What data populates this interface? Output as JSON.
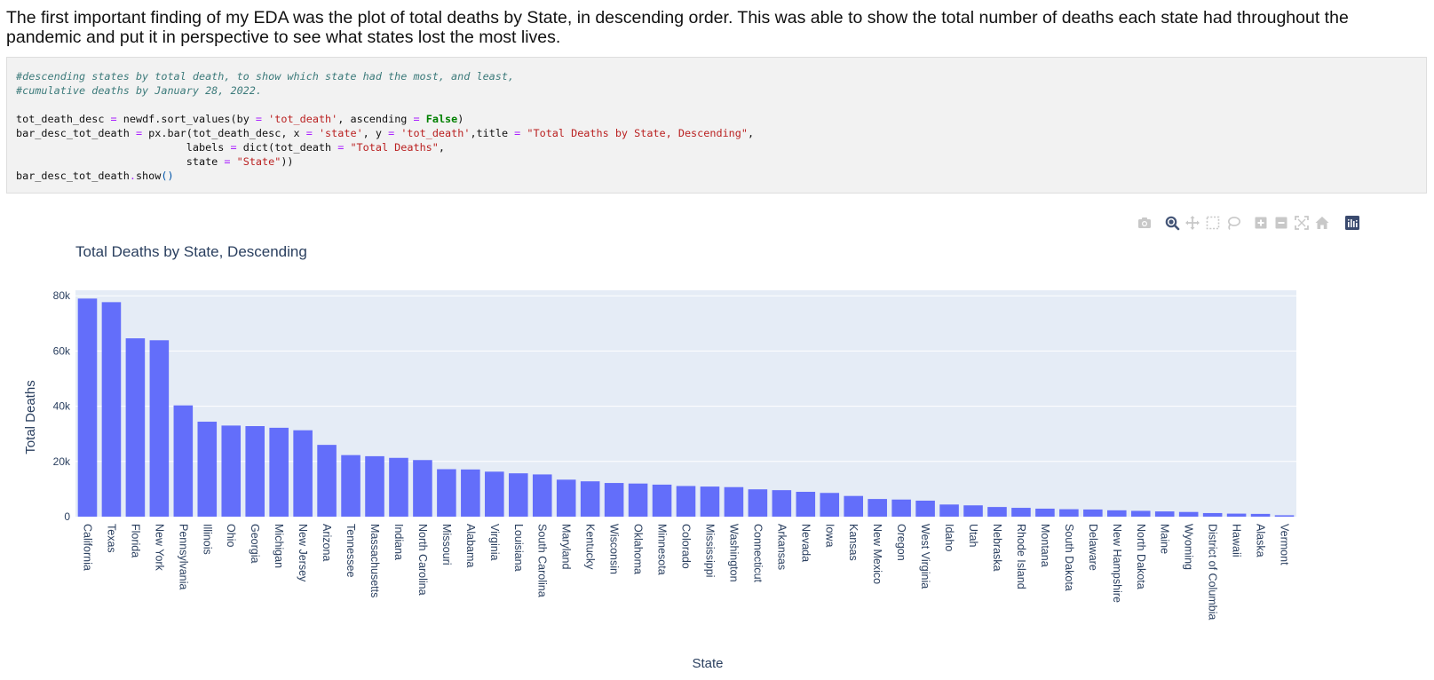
{
  "notebook": {
    "intro_text": "The first important finding of my EDA was the plot of total deaths by State, in descending order. This was able to show the total number of deaths each state had throughout the pandemic and put it in perspective to see what states lost the most lives."
  },
  "code_cell": {
    "lines": [
      "#descending states by total death, to show which state had the most, and least,",
      "#cumulative deaths by January 28, 2022.",
      "",
      "tot_death_desc = newdf.sort_values(by = 'tot_death', ascending = False)",
      "bar_desc_tot_death = px.bar(tot_death_desc, x = 'state', y = 'tot_death',title = \"Total Deaths by State, Descending\",",
      "                           labels = dict(tot_death = \"Total Deaths\",",
      "                           state = \"State\"))",
      "bar_desc_tot_death.show()"
    ]
  },
  "modebar": {
    "icons": [
      "camera-icon",
      "zoom-icon",
      "pan-icon",
      "box-select-icon",
      "lasso-select-icon",
      "zoom-in-icon",
      "zoom-out-icon",
      "autoscale-icon",
      "reset-axes-icon",
      "plotly-logo-icon"
    ]
  },
  "colors": {
    "bar": "#636efa",
    "plot_bg": "#e5ecf6",
    "grid": "#ffffff",
    "axis_text": "#2a3f5f",
    "modebar_icon": "#c8c8c8",
    "modebar_active": "#445577",
    "plotly_logo_bg": "#3a4a6e"
  },
  "chart_data": {
    "type": "bar",
    "title": "Total Deaths by State, Descending",
    "xlabel": "State",
    "ylabel": "Total Deaths",
    "ylim": [
      0,
      80000
    ],
    "yticks": [
      0,
      20000,
      40000,
      60000,
      80000
    ],
    "ytick_labels": [
      "0",
      "20k",
      "40k",
      "60k",
      "80k"
    ],
    "grid": true,
    "categories": [
      "California",
      "Texas",
      "Florida",
      "New York",
      "Pennsylvania",
      "Illinois",
      "Ohio",
      "Georgia",
      "Michigan",
      "New Jersey",
      "Arizona",
      "Tennessee",
      "Massachusetts",
      "Indiana",
      "North Carolina",
      "Missouri",
      "Alabama",
      "Virginia",
      "Louisiana",
      "South Carolina",
      "Maryland",
      "Kentucky",
      "Wisconsin",
      "Oklahoma",
      "Minnesota",
      "Colorado",
      "Mississippi",
      "Washington",
      "Connecticut",
      "Arkansas",
      "Nevada",
      "Iowa",
      "Kansas",
      "New Mexico",
      "Oregon",
      "West Virginia",
      "Idaho",
      "Utah",
      "Nebraska",
      "Rhode Island",
      "Montana",
      "South Dakota",
      "Delaware",
      "New Hampshire",
      "North Dakota",
      "Maine",
      "Wyoming",
      "District of Columbia",
      "Hawaii",
      "Alaska",
      "Vermont"
    ],
    "values": [
      79000,
      77700,
      64600,
      63900,
      40300,
      34400,
      33000,
      32800,
      32200,
      31300,
      26000,
      22300,
      21900,
      21300,
      20500,
      17200,
      17100,
      16300,
      15700,
      15300,
      13400,
      12800,
      12200,
      12000,
      11600,
      11100,
      10900,
      10700,
      9900,
      9600,
      9000,
      8600,
      7500,
      6400,
      6200,
      5800,
      4400,
      4100,
      3500,
      3200,
      2900,
      2700,
      2600,
      2300,
      2100,
      1900,
      1700,
      1300,
      1100,
      1000,
      500
    ]
  }
}
